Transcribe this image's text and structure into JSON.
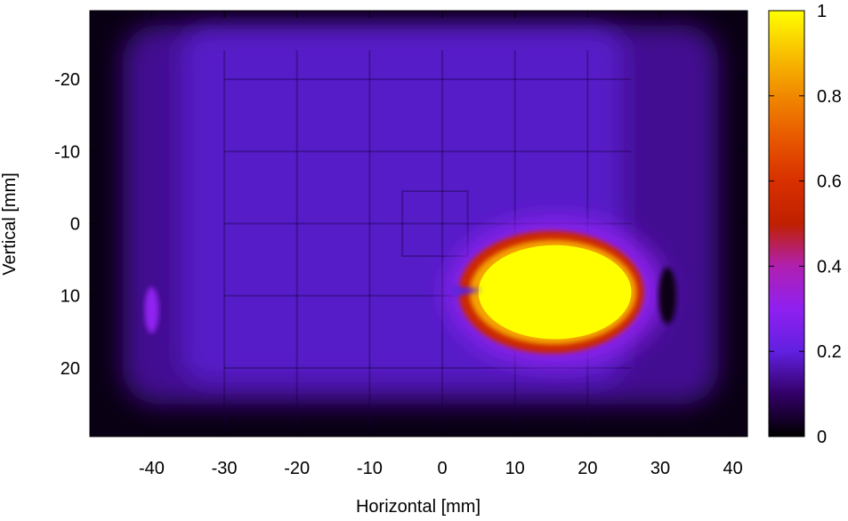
{
  "chart_data": {
    "type": "heatmap",
    "title": "",
    "xlabel": "Horizontal [mm]",
    "ylabel": "Vertical [mm]",
    "xlim": [
      -48.5,
      42
    ],
    "ylim": [
      29.5,
      -29.5
    ],
    "x_ticks": [
      -40,
      -30,
      -20,
      -10,
      0,
      10,
      20,
      30,
      40
    ],
    "y_ticks": [
      -20,
      -10,
      0,
      10,
      20
    ],
    "x_tick_labels": [
      "-40",
      "-30",
      "-20",
      "-10",
      "0",
      "10",
      "20",
      "30",
      "40"
    ],
    "y_tick_labels": [
      "-20",
      "-10",
      "0",
      "10",
      "20"
    ],
    "colorbar": {
      "range": [
        0,
        1
      ],
      "ticks": [
        0,
        0.2,
        0.4,
        0.6,
        0.8,
        1
      ],
      "tick_labels": [
        "0",
        "0.2",
        "0.4",
        "0.6",
        "0.8",
        "1"
      ],
      "colormap": "black-purple-blue-violet-red-orange-yellow",
      "stops": [
        {
          "v": 0.0,
          "color": "#000000"
        },
        {
          "v": 0.1,
          "color": "#330066"
        },
        {
          "v": 0.2,
          "color": "#6020e0"
        },
        {
          "v": 0.3,
          "color": "#9020f0"
        },
        {
          "v": 0.4,
          "color": "#b020b0"
        },
        {
          "v": 0.5,
          "color": "#c02000"
        },
        {
          "v": 0.6,
          "color": "#d83000"
        },
        {
          "v": 0.7,
          "color": "#e85800"
        },
        {
          "v": 0.8,
          "color": "#f08800"
        },
        {
          "v": 0.9,
          "color": "#f8c000"
        },
        {
          "v": 1.0,
          "color": "#ffff00"
        }
      ]
    },
    "regions": {
      "background_level": 0.18,
      "outer_edge_level": 0.02,
      "bright_spot": {
        "x_range": [
          3,
          26.5
        ],
        "y_range": [
          2,
          17
        ],
        "center_x": 15,
        "center_y": 9.5,
        "peak_value": 1.0
      },
      "left_spot": {
        "center_x": -40,
        "center_y": 12,
        "value": 0.3
      }
    },
    "grid": false,
    "legend": "colorbar-right"
  }
}
